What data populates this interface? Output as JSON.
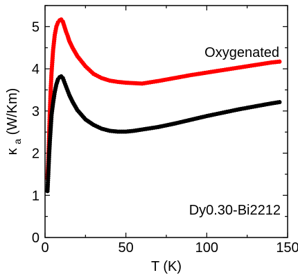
{
  "chart_data": {
    "type": "scatter",
    "xlabel": "T (K)",
    "ylabel_main": "κ",
    "ylabel_sub": "a",
    "ylabel_rest": " (W/Km)",
    "xlim": [
      0,
      150
    ],
    "ylim": [
      0,
      5.5
    ],
    "x_ticks": [
      0,
      50,
      100,
      150
    ],
    "y_ticks": [
      0,
      1,
      2,
      3,
      4,
      5
    ],
    "grid": false,
    "annotations": [
      {
        "text": "Oxygenated",
        "near_series": "red"
      },
      {
        "text": "Dy0.30-Bi2212",
        "placement": "bottom-right"
      }
    ],
    "series": [
      {
        "color": "#ff0000",
        "points": [
          [
            1.5,
            1.4
          ],
          [
            2,
            1.8
          ],
          [
            2.5,
            2.4
          ],
          [
            3,
            3.0
          ],
          [
            3.5,
            3.5
          ],
          [
            4,
            3.9
          ],
          [
            5,
            4.45
          ],
          [
            6,
            4.8
          ],
          [
            7,
            5.0
          ],
          [
            8,
            5.1
          ],
          [
            9,
            5.15
          ],
          [
            10,
            5.17
          ],
          [
            11,
            5.12
          ],
          [
            12,
            5.0
          ],
          [
            13,
            4.88
          ],
          [
            14,
            4.78
          ],
          [
            15,
            4.66
          ],
          [
            17,
            4.5
          ],
          [
            20,
            4.3
          ],
          [
            25,
            4.06
          ],
          [
            30,
            3.88
          ],
          [
            35,
            3.78
          ],
          [
            40,
            3.72
          ],
          [
            45,
            3.69
          ],
          [
            50,
            3.67
          ],
          [
            55,
            3.66
          ],
          [
            60,
            3.65
          ],
          [
            65,
            3.68
          ],
          [
            70,
            3.71
          ],
          [
            80,
            3.78
          ],
          [
            90,
            3.85
          ],
          [
            100,
            3.91
          ],
          [
            110,
            3.97
          ],
          [
            120,
            4.03
          ],
          [
            130,
            4.09
          ],
          [
            140,
            4.15
          ],
          [
            145,
            4.17
          ]
        ]
      },
      {
        "color": "#000000",
        "points": [
          [
            1.5,
            1.1
          ],
          [
            2,
            1.5
          ],
          [
            2.5,
            1.95
          ],
          [
            3,
            2.3
          ],
          [
            3.5,
            2.6
          ],
          [
            4,
            2.9
          ],
          [
            5,
            3.2
          ],
          [
            6,
            3.45
          ],
          [
            7,
            3.63
          ],
          [
            8,
            3.75
          ],
          [
            9,
            3.8
          ],
          [
            10,
            3.82
          ],
          [
            11,
            3.78
          ],
          [
            12,
            3.68
          ],
          [
            13,
            3.58
          ],
          [
            14,
            3.48
          ],
          [
            15,
            3.38
          ],
          [
            17,
            3.22
          ],
          [
            20,
            3.02
          ],
          [
            25,
            2.8
          ],
          [
            30,
            2.67
          ],
          [
            35,
            2.58
          ],
          [
            40,
            2.53
          ],
          [
            45,
            2.51
          ],
          [
            50,
            2.51
          ],
          [
            55,
            2.53
          ],
          [
            60,
            2.56
          ],
          [
            70,
            2.62
          ],
          [
            80,
            2.7
          ],
          [
            90,
            2.79
          ],
          [
            100,
            2.88
          ],
          [
            110,
            2.96
          ],
          [
            120,
            3.04
          ],
          [
            130,
            3.11
          ],
          [
            140,
            3.18
          ],
          [
            145,
            3.21
          ]
        ]
      }
    ]
  }
}
